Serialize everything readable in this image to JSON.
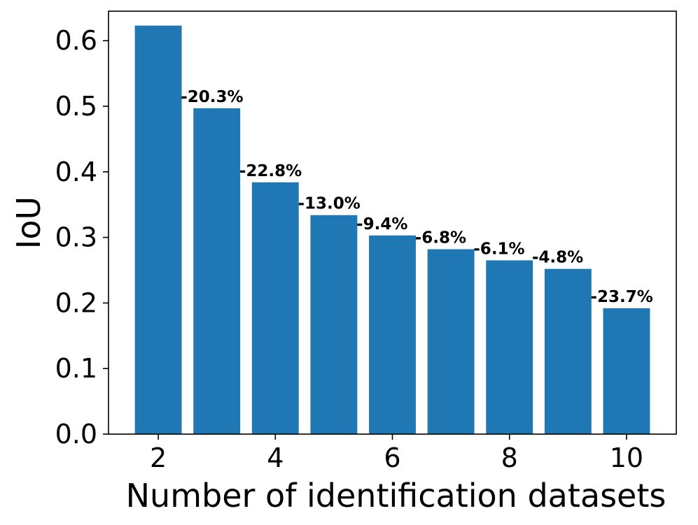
{
  "chart_data": {
    "type": "bar",
    "x": [
      2,
      3,
      4,
      5,
      6,
      7,
      8,
      9,
      10
    ],
    "values": [
      0.623,
      0.497,
      0.384,
      0.334,
      0.303,
      0.282,
      0.265,
      0.252,
      0.192
    ],
    "data_labels": [
      "",
      "-20.3%",
      "-22.8%",
      "-13.0%",
      "-9.4%",
      "-6.8%",
      "-6.1%",
      "-4.8%",
      "-23.7%"
    ],
    "xlabel": "Number of identification datasets",
    "ylabel": "IoU",
    "xticks": [
      2,
      4,
      6,
      8,
      10
    ],
    "yticks": [
      0.0,
      0.1,
      0.2,
      0.3,
      0.4,
      0.5,
      0.6
    ],
    "ytick_labels": [
      "0.0",
      "0.1",
      "0.2",
      "0.3",
      "0.4",
      "0.5",
      "0.6"
    ],
    "xlim": [
      1.15,
      10.85
    ],
    "ylim": [
      0,
      0.645
    ],
    "grid": false,
    "bar_color": "#1f77b4"
  }
}
